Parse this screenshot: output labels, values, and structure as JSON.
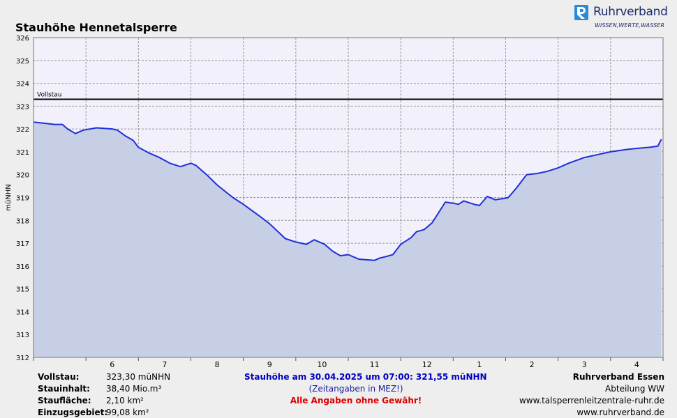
{
  "header": {
    "title": "Stauhöhe Hennetalsperre",
    "logo_name": "Ruhrverband",
    "logo_slogan": "WISSEN,WERTE,WASSER"
  },
  "footer": {
    "left": [
      {
        "label": "Vollstau:",
        "value": "323,30 müNHN"
      },
      {
        "label": "Stauinhalt:",
        "value": "38,40 Mio.m³"
      },
      {
        "label": "Staufläche:",
        "value": "2,10 km²"
      },
      {
        "label": "Einzugsgebiet:",
        "value": "99,08 km²"
      }
    ],
    "current": "Stauhöhe am 30.04.2025 um 07:00: 321,55  müNHN",
    "timezone_note": "(Zeitangaben in MEZ!)",
    "disclaimer": "Alle Angaben ohne Gewähr!",
    "org": "Ruhrverband Essen",
    "department": "Abteilung WW",
    "url1": "www.talsperrenleitzentrale-ruhr.de",
    "url2": "www.ruhrverband.de"
  },
  "colors": {
    "line": "#1f2fd6",
    "fill": "#c6cfe6",
    "plot_bg": "#f1f0fb",
    "reference": "#000000",
    "current_text": "#0000c0",
    "note_text": "#1a1aa0",
    "disclaimer_text": "#e00000",
    "logo": "#1f2d6b"
  },
  "chart_data": {
    "type": "area",
    "title": "Stauhöhe Hennetalsperre",
    "xlabel": "",
    "ylabel": "müNHN",
    "ylim": [
      312,
      326
    ],
    "xlim": [
      0,
      12
    ],
    "yticks": [
      "312",
      "313",
      "314",
      "315",
      "316",
      "317",
      "318",
      "319",
      "320",
      "321",
      "322",
      "323",
      "324",
      "325",
      "326"
    ],
    "xticks": [
      {
        "x": 1.5,
        "label": "6"
      },
      {
        "x": 2.5,
        "label": "7"
      },
      {
        "x": 3.5,
        "label": "8"
      },
      {
        "x": 4.5,
        "label": "9"
      },
      {
        "x": 5.5,
        "label": "10"
      },
      {
        "x": 6.5,
        "label": "11"
      },
      {
        "x": 7.5,
        "label": "12"
      },
      {
        "x": 8.5,
        "label": "1"
      },
      {
        "x": 9.5,
        "label": "2"
      },
      {
        "x": 10.5,
        "label": "3"
      },
      {
        "x": 11.5,
        "label": "4"
      }
    ],
    "reference": {
      "label": "Vollstau",
      "value": 323.3
    },
    "grid": true,
    "series": [
      {
        "x": [
          0,
          0.2,
          0.4,
          0.55,
          0.65,
          0.8,
          0.95,
          1.2,
          1.5,
          1.6,
          1.75,
          1.9,
          2.0,
          2.2,
          2.4,
          2.6,
          2.8,
          3.0,
          3.1,
          3.3,
          3.5,
          3.8,
          4.0,
          4.3,
          4.5,
          4.8,
          5.0,
          5.2,
          5.35,
          5.55,
          5.7,
          5.85,
          6.0,
          6.2,
          6.5,
          6.6,
          6.7,
          6.85,
          7.0,
          7.1,
          7.2,
          7.3,
          7.45,
          7.5,
          7.6,
          7.85,
          8.0,
          8.1,
          8.2,
          8.4,
          8.5,
          8.65,
          8.8,
          8.95,
          9.05,
          9.2,
          9.4,
          9.6,
          9.8,
          10.0,
          10.2,
          10.5,
          10.8,
          11.0,
          11.3,
          11.5,
          11.75,
          11.9,
          11.97
        ],
        "y": [
          322.3,
          322.25,
          322.2,
          322.2,
          322.0,
          321.8,
          321.95,
          322.05,
          322.0,
          321.95,
          321.7,
          321.5,
          321.2,
          320.95,
          320.75,
          320.5,
          320.35,
          320.5,
          320.4,
          320.0,
          319.55,
          319.0,
          318.7,
          318.2,
          317.85,
          317.2,
          317.05,
          316.95,
          317.15,
          316.95,
          316.65,
          316.45,
          316.5,
          316.3,
          316.25,
          316.35,
          316.4,
          316.5,
          316.95,
          317.1,
          317.25,
          317.5,
          317.6,
          317.7,
          317.9,
          318.8,
          318.75,
          318.7,
          318.85,
          318.7,
          318.65,
          319.05,
          318.9,
          318.95,
          319.0,
          319.4,
          320.0,
          320.05,
          320.15,
          320.3,
          320.5,
          320.75,
          320.9,
          321.0,
          321.1,
          321.15,
          321.2,
          321.25,
          321.55
        ]
      }
    ]
  }
}
